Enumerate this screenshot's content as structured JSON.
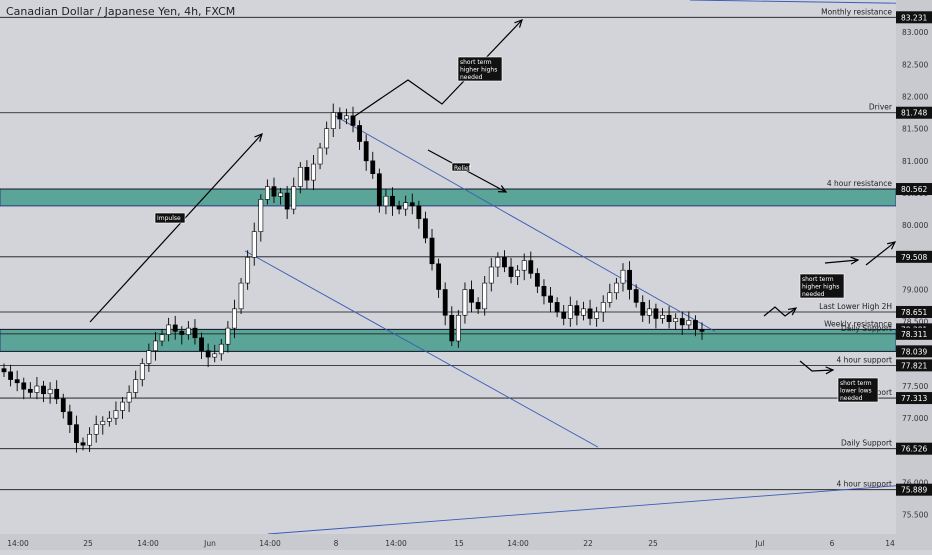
{
  "header": {
    "title": "Canadian Dollar / Japanese Yen, 4h, FXCM"
  },
  "colors": {
    "background": "#d3d4da",
    "zone": "#5aa597",
    "zone_border": "#2a3a8a",
    "bull": "#ffffff",
    "bear": "#000000",
    "trendline": "#3a5ab5",
    "axis_bg": "#c9cad0",
    "price_tag": "#111111"
  },
  "chart_data": {
    "type": "candlestick",
    "title": "Canadian Dollar / Japanese Yen, 4h, FXCM",
    "ylim": [
      75.2,
      83.5
    ],
    "x_ticks": [
      "14:00",
      "25",
      "14:00",
      "Jun",
      "14:00",
      "8",
      "14:00",
      "15",
      "14:00",
      "22",
      "25",
      "Jul",
      "6",
      "14"
    ],
    "y_ticks": [
      "83.000",
      "82.500",
      "82.000",
      "81.500",
      "81.000",
      "80.500",
      "80.000",
      "79.500",
      "79.000",
      "78.500",
      "78.000",
      "77.500",
      "77.000",
      "76.500",
      "76.000",
      "75.500"
    ],
    "levels": [
      {
        "label": "Monthly resistance",
        "price": 83.231,
        "tag": "83.231"
      },
      {
        "label": "Driver",
        "price": 81.748,
        "tag": "81.748"
      },
      {
        "label": "4 hour resistance",
        "price": 80.562,
        "tag": "80.562"
      },
      {
        "label": "",
        "price": 79.508,
        "tag": "79.508"
      },
      {
        "label": "Last Lower High 2H",
        "price": 78.651,
        "tag": "78.651"
      },
      {
        "label": "Weekly resistance",
        "price": 78.381,
        "tag": "78.381"
      },
      {
        "label": "Daily Support",
        "price": 78.311,
        "tag": "78.311"
      },
      {
        "label": "",
        "price": 78.039,
        "tag": "78.039"
      },
      {
        "label": "4 hour support",
        "price": 77.821,
        "tag": "77.821"
      },
      {
        "label": "Support",
        "price": 77.313,
        "tag": "77.313"
      },
      {
        "label": "Daily Support",
        "price": 76.526,
        "tag": "76.526"
      },
      {
        "label": "4 hour support",
        "price": 75.889,
        "tag": "75.889"
      }
    ],
    "zones": [
      {
        "top": 80.562,
        "bottom": 80.3
      },
      {
        "top": 78.381,
        "bottom": 78.039
      }
    ],
    "annotations": [
      "Impulse",
      "Relief",
      "short term higher highs needed",
      "short term higher highs needed",
      "short term lower lows needed"
    ],
    "closes": [
      77.72,
      77.6,
      77.55,
      77.45,
      77.4,
      77.5,
      77.38,
      77.45,
      77.3,
      77.1,
      76.9,
      76.62,
      76.58,
      76.75,
      76.9,
      76.95,
      77.0,
      77.12,
      77.25,
      77.4,
      77.6,
      77.85,
      78.05,
      78.2,
      78.3,
      78.45,
      78.35,
      78.3,
      78.4,
      78.25,
      78.05,
      77.95,
      78.0,
      78.15,
      78.4,
      78.7,
      79.1,
      79.5,
      79.9,
      80.4,
      80.6,
      80.45,
      80.5,
      80.25,
      80.6,
      80.9,
      80.7,
      80.95,
      81.2,
      81.5,
      81.75,
      81.65,
      81.7,
      81.55,
      81.3,
      81.0,
      80.8,
      80.3,
      80.45,
      80.3,
      80.25,
      80.35,
      80.3,
      80.1,
      79.8,
      79.4,
      79.0,
      78.6,
      78.2,
      78.6,
      79.0,
      78.8,
      78.7,
      79.1,
      79.35,
      79.5,
      79.35,
      79.2,
      79.3,
      79.45,
      79.25,
      79.05,
      78.9,
      78.8,
      78.65,
      78.55,
      78.75,
      78.6,
      78.7,
      78.55,
      78.65,
      78.8,
      78.95,
      79.1,
      79.3,
      79.0,
      78.8,
      78.6,
      78.7,
      78.55,
      78.6,
      78.5,
      78.55,
      78.45,
      78.52,
      78.38,
      78.35
    ]
  }
}
